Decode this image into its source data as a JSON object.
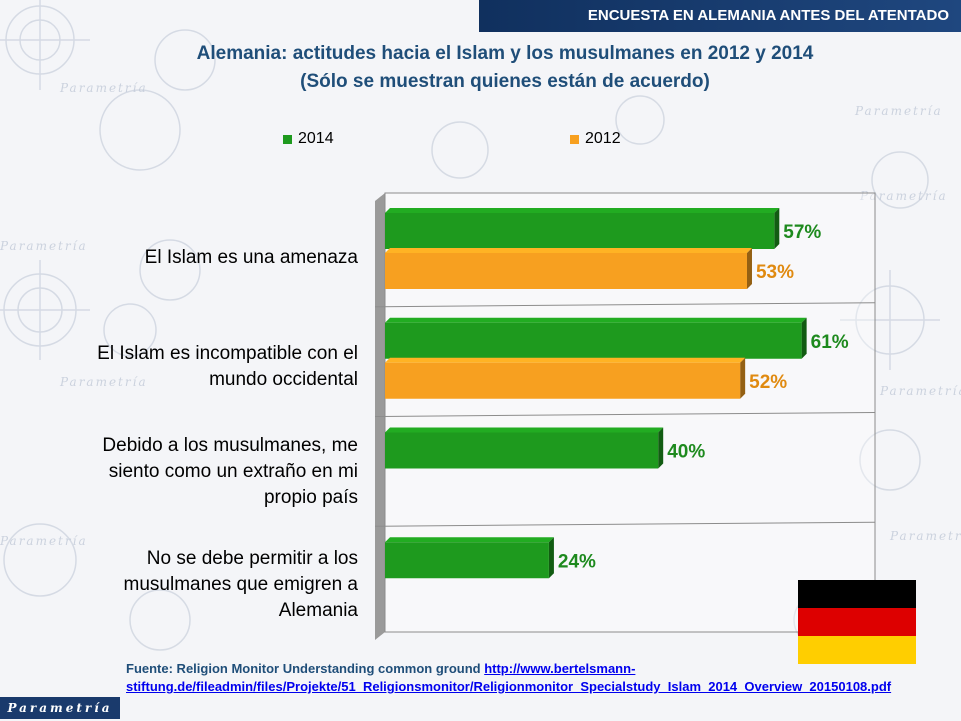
{
  "header": {
    "banner": "ENCUESTA EN ALEMANIA ANTES DEL ATENTADO"
  },
  "chart_data": {
    "type": "bar",
    "orientation": "horizontal",
    "title": "Alemania: actitudes hacia el Islam y los musulmanes en 2012 y 2014",
    "subtitle": "(Sólo se muestran quienes están de acuerdo)",
    "categories": [
      "El Islam es una amenaza",
      "El Islam es incompatible con el mundo occidental",
      "Debido a los musulmanes, me siento como un extraño en mi propio país",
      "No se debe permitir a los musulmanes que emigren a Alemania"
    ],
    "series": [
      {
        "name": "2014",
        "values": [
          57,
          61,
          40,
          24
        ],
        "labels": [
          "57%",
          "61%",
          "40%",
          "24%"
        ],
        "color": "#1e9a1e"
      },
      {
        "name": "2012",
        "values": [
          53,
          52,
          null,
          null
        ],
        "labels": [
          "53%",
          "52%",
          "",
          ""
        ],
        "color": "#f7a020"
      }
    ],
    "xlim": [
      0,
      70
    ],
    "legend_position": "top",
    "grid": false
  },
  "category_lines": [
    [
      "El Islam es una amenaza"
    ],
    [
      "El Islam es incompatible con el",
      "mundo occidental"
    ],
    [
      "Debido a los musulmanes, me",
      "siento como un extraño en mi",
      "propio país"
    ],
    [
      "No se debe permitir a los",
      "musulmanes que emigren a",
      "Alemania"
    ]
  ],
  "footer": {
    "source_prefix": "Fuente: Religion Monitor Understanding common ground ",
    "source_link": "http://www.bertelsmann-stiftung.de/fileadmin/files/Projekte/51_Religionsmonitor/Religionmonitor_Specialstudy_Islam_2014_Overview_20150108.pdf"
  },
  "branding": {
    "logo_text": "Parametría",
    "watermark_text": "Parametría"
  },
  "flag": {
    "colors": [
      "#000000",
      "#dd0000",
      "#ffce00"
    ]
  }
}
